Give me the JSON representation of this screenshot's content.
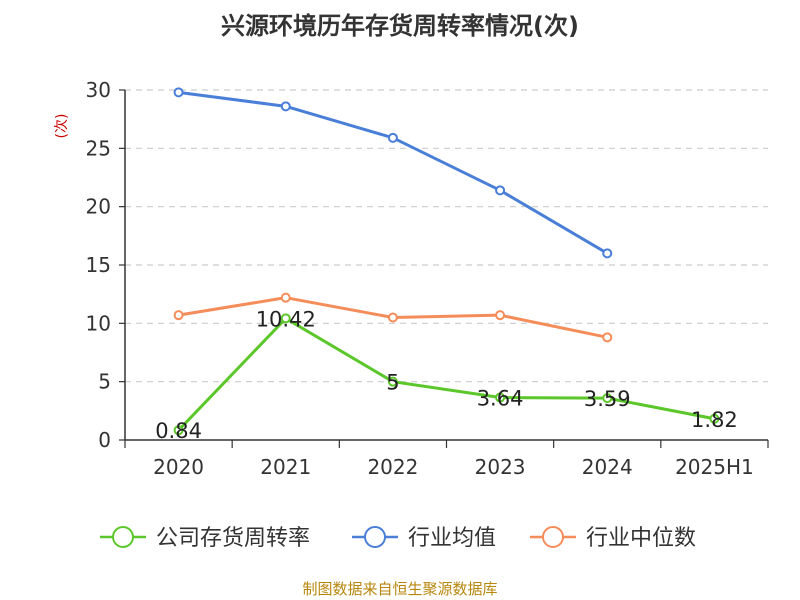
{
  "chart_data": {
    "type": "line",
    "title": "兴源环境历年存货周转率情况(次)",
    "ylabel": "(次)",
    "xlabel": "",
    "ylim": [
      0,
      30
    ],
    "yticks": [
      0,
      5,
      10,
      15,
      20,
      25,
      30
    ],
    "categories": [
      "2020",
      "2021",
      "2022",
      "2023",
      "2024",
      "2025H1"
    ],
    "grid": true,
    "legend_position": "bottom",
    "series": [
      {
        "name": "公司存货周转率",
        "color": "#5cc72a",
        "values": [
          0.84,
          10.42,
          5,
          3.64,
          3.59,
          1.82
        ],
        "labels": [
          "0.84",
          "10.42",
          "5",
          "3.64",
          "3.59",
          "1.82"
        ]
      },
      {
        "name": "行业均值",
        "color": "#4a7fd8",
        "values": [
          29.8,
          28.6,
          25.9,
          21.4,
          16.0,
          null
        ]
      },
      {
        "name": "行业中位数",
        "color": "#f58d5a",
        "values": [
          10.7,
          12.2,
          10.5,
          10.7,
          8.8,
          null
        ]
      }
    ],
    "source": "制图数据来自恒生聚源数据库"
  }
}
